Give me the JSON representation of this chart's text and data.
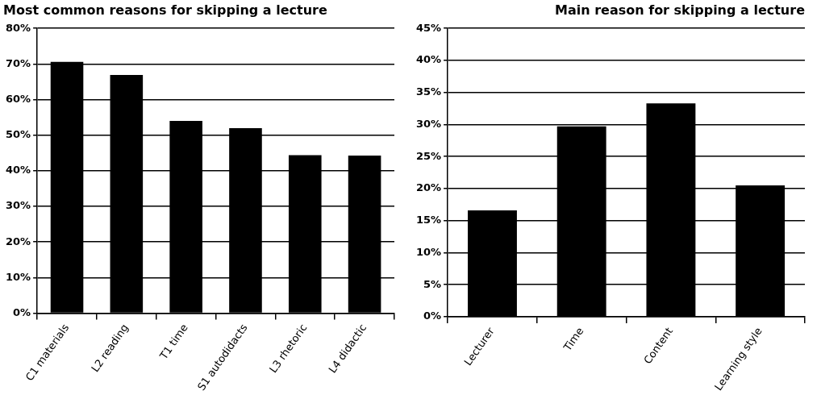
{
  "chart_data": [
    {
      "type": "bar",
      "title": "Most common reasons for skipping a lecture",
      "categories": [
        "C1 materials",
        "L2 reading",
        "T1 time",
        "S1 autodidacts",
        "L3 rhetoric",
        "L4 didactic"
      ],
      "values": [
        70.6,
        66.9,
        54,
        52,
        44.4,
        44.3
      ],
      "color": "#000000",
      "ylim": [
        0,
        80
      ],
      "yticks": [
        {
          "value": 0,
          "label": "0%"
        },
        {
          "value": 10,
          "label": "10%"
        },
        {
          "value": 20,
          "label": "20%"
        },
        {
          "value": 30,
          "label": "30%"
        },
        {
          "value": 40,
          "label": "40%"
        },
        {
          "value": 50,
          "label": "50%"
        },
        {
          "value": 60,
          "label": "60%"
        },
        {
          "value": 70,
          "label": "70%"
        },
        {
          "value": 80,
          "label": "80%"
        }
      ],
      "grid": "y",
      "legend": false
    },
    {
      "type": "bar",
      "title": "Main reason for skipping a lecture",
      "categories": [
        "Lecturer",
        "Time",
        "Content",
        "Learning style"
      ],
      "values": [
        16.6,
        29.7,
        33.3,
        20.5
      ],
      "color": "#000000",
      "ylim": [
        0,
        45
      ],
      "yticks": [
        {
          "value": 0,
          "label": "0%"
        },
        {
          "value": 5,
          "label": "5%"
        },
        {
          "value": 10,
          "label": "10%"
        },
        {
          "value": 15,
          "label": "15%"
        },
        {
          "value": 20,
          "label": "20%"
        },
        {
          "value": 25,
          "label": "25%"
        },
        {
          "value": 30,
          "label": "30%"
        },
        {
          "value": 35,
          "label": "35%"
        },
        {
          "value": 40,
          "label": "40%"
        },
        {
          "value": 45,
          "label": "45%"
        }
      ],
      "grid": "y",
      "legend": false
    }
  ]
}
